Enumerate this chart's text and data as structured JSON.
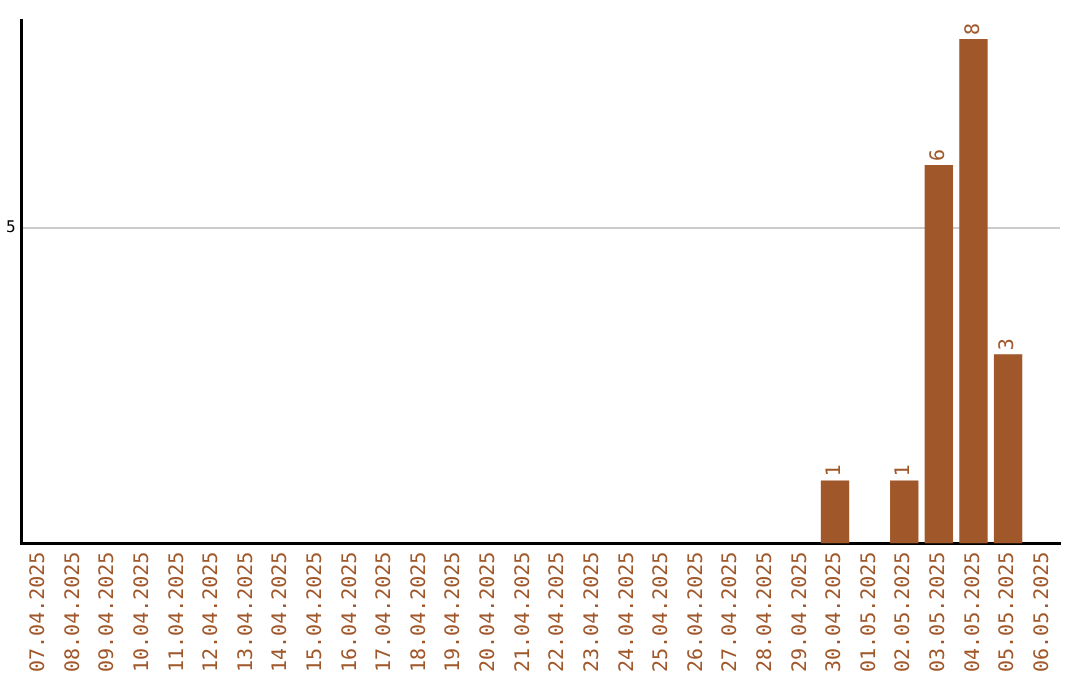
{
  "chart_data": {
    "type": "bar",
    "categories": [
      "07.04.2025",
      "08.04.2025",
      "09.04.2025",
      "10.04.2025",
      "11.04.2025",
      "12.04.2025",
      "13.04.2025",
      "14.04.2025",
      "15.04.2025",
      "16.04.2025",
      "17.04.2025",
      "18.04.2025",
      "19.04.2025",
      "20.04.2025",
      "21.04.2025",
      "22.04.2025",
      "23.04.2025",
      "24.04.2025",
      "25.04.2025",
      "26.04.2025",
      "27.04.2025",
      "28.04.2025",
      "29.04.2025",
      "30.04.2025",
      "01.05.2025",
      "02.05.2025",
      "03.05.2025",
      "04.05.2025",
      "05.05.2025",
      "06.05.2025"
    ],
    "values": [
      null,
      null,
      null,
      null,
      null,
      null,
      null,
      null,
      null,
      null,
      null,
      null,
      null,
      null,
      null,
      null,
      null,
      null,
      null,
      null,
      null,
      null,
      null,
      1,
      null,
      1,
      6,
      8,
      3,
      null
    ],
    "data_labels": true,
    "color": "#a0572a",
    "ylim": [
      0,
      8.3
    ],
    "yticks": [
      5
    ],
    "grid": "y",
    "legend": false
  }
}
